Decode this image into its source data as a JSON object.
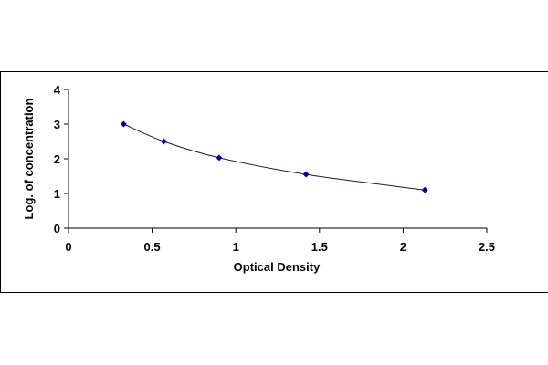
{
  "chart_data": {
    "type": "scatter",
    "title": "",
    "xlabel": "Optical Density",
    "ylabel": "Log. of concentration",
    "xlim": [
      0,
      2.5
    ],
    "ylim": [
      0,
      4
    ],
    "xticks": [
      "0",
      "0.5",
      "1",
      "1.5",
      "2",
      "2.5"
    ],
    "yticks": [
      "0",
      "1",
      "2",
      "3",
      "4"
    ],
    "grid": false,
    "legend": "none",
    "trendline": "fitted curve",
    "series": [
      {
        "x": [
          0.33,
          0.57,
          0.9,
          1.42,
          2.13
        ],
        "y": [
          3.0,
          2.5,
          2.03,
          1.55,
          1.1
        ]
      }
    ],
    "colors": {
      "marker": "#00008b",
      "curve": "#1a1a3a",
      "axis": "#000000"
    }
  }
}
